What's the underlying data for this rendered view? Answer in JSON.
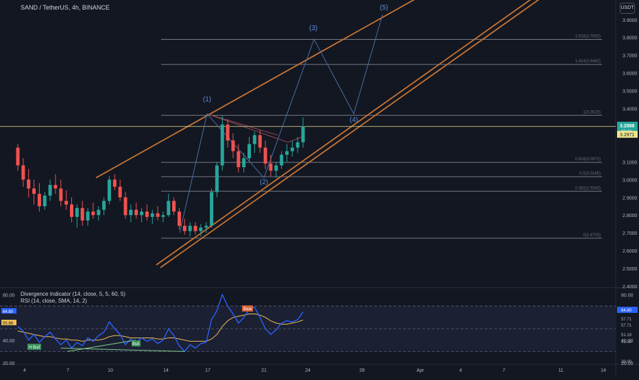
{
  "header": {
    "symbol_line": "SAND / TetherUS, 4h, BINANCE",
    "currency_badge": "USDT"
  },
  "indicator_legend": {
    "line1": "Divergence Indicator (14, close, 5, 5, 60, 5)",
    "line2": "RSI (14, close, SMA, 14, 2)"
  },
  "price_axis": {
    "ticks": [
      "3.9000",
      "3.8000",
      "3.7000",
      "3.6000",
      "3.5000",
      "3.4000",
      "3.3000",
      "3.1000",
      "3.0000",
      "2.9000",
      "2.8000",
      "2.7000",
      "2.6000",
      "2.5000",
      "2.4000"
    ],
    "current_price": "3.2988",
    "countdown": "00:48",
    "price_label_2": "3.2971"
  },
  "rsi_axis": {
    "ticks": [
      "80.00",
      "40.00",
      "20.00"
    ],
    "right_labels": [
      "64.80",
      "57.71",
      "57.71",
      "51.19",
      "51.19",
      "20.00"
    ],
    "left_labels": [
      "64.80",
      "55.88"
    ]
  },
  "time_axis": {
    "ticks": [
      "4",
      "7",
      "10",
      "14",
      "17",
      "21",
      "24",
      "28",
      "Apr",
      "4",
      "7",
      "11",
      "14"
    ]
  },
  "fib_levels": [
    {
      "label": "1.618(3.7893)",
      "value": 3.7893
    },
    {
      "label": "1.414(3.6482)",
      "value": 3.6482
    },
    {
      "label": "1(3.3619)",
      "value": 3.3619
    },
    {
      "label": "0.618(3.0972)",
      "value": 3.0972
    },
    {
      "label": "0.5(3.0165)",
      "value": 3.0165
    },
    {
      "label": "0.382(2.9345)",
      "value": 2.9345
    },
    {
      "label": "0(2.6703)",
      "value": 2.6703
    }
  ],
  "wave_labels": [
    "(1)",
    "(2)",
    "(3)",
    "(4)",
    "(5)"
  ],
  "rsi_markers": {
    "bull": "H Bull",
    "bull2": "Bull",
    "bear": "Bear"
  },
  "colors": {
    "background": "#131722",
    "up": "#26a69a",
    "down": "#ef5350",
    "channel": "#c87533",
    "fib": "#787b86",
    "wave": "#4a6fa5",
    "rsi": "#2962ff",
    "rsi_ma": "#f0c05a",
    "current_price_line": "#f0e68c"
  },
  "chart_data": {
    "type": "candlestick",
    "ylim": [
      2.4,
      3.98
    ],
    "rsi_ylim": [
      20,
      85
    ],
    "candles": [
      [
        3.18,
        3.2,
        3.05,
        3.08
      ],
      [
        3.08,
        3.12,
        2.96,
        3.0
      ],
      [
        3.0,
        3.06,
        2.9,
        2.95
      ],
      [
        2.95,
        3.0,
        2.86,
        2.92
      ],
      [
        2.92,
        2.98,
        2.82,
        2.85
      ],
      [
        2.85,
        2.93,
        2.83,
        2.91
      ],
      [
        2.91,
        3.0,
        2.88,
        2.97
      ],
      [
        2.97,
        3.03,
        2.92,
        2.95
      ],
      [
        2.95,
        3.0,
        2.85,
        2.88
      ],
      [
        2.88,
        2.94,
        2.83,
        2.86
      ],
      [
        2.86,
        2.9,
        2.76,
        2.79
      ],
      [
        2.79,
        2.86,
        2.73,
        2.84
      ],
      [
        2.84,
        2.88,
        2.74,
        2.77
      ],
      [
        2.77,
        2.84,
        2.74,
        2.82
      ],
      [
        2.82,
        2.87,
        2.78,
        2.8
      ],
      [
        2.8,
        2.85,
        2.77,
        2.83
      ],
      [
        2.83,
        2.9,
        2.8,
        2.88
      ],
      [
        2.88,
        3.02,
        2.86,
        3.0
      ],
      [
        3.0,
        3.03,
        2.94,
        2.96
      ],
      [
        2.96,
        3.0,
        2.88,
        2.9
      ],
      [
        2.9,
        2.93,
        2.78,
        2.8
      ],
      [
        2.8,
        2.86,
        2.76,
        2.83
      ],
      [
        2.83,
        2.87,
        2.78,
        2.8
      ],
      [
        2.8,
        2.84,
        2.76,
        2.82
      ],
      [
        2.82,
        2.86,
        2.77,
        2.79
      ],
      [
        2.79,
        2.83,
        2.75,
        2.81
      ],
      [
        2.81,
        2.85,
        2.77,
        2.79
      ],
      [
        2.79,
        2.82,
        2.76,
        2.8
      ],
      [
        2.8,
        2.92,
        2.79,
        2.88
      ],
      [
        2.88,
        2.9,
        2.8,
        2.82
      ],
      [
        2.82,
        2.84,
        2.72,
        2.74
      ],
      [
        2.74,
        2.78,
        2.69,
        2.71
      ],
      [
        2.71,
        2.76,
        2.68,
        2.74
      ],
      [
        2.74,
        2.76,
        2.69,
        2.71
      ],
      [
        2.71,
        2.75,
        2.68,
        2.73
      ],
      [
        2.73,
        2.76,
        2.7,
        2.74
      ],
      [
        2.74,
        2.95,
        2.73,
        2.93
      ],
      [
        2.93,
        3.1,
        2.9,
        3.08
      ],
      [
        3.08,
        3.36,
        3.05,
        3.31
      ],
      [
        3.31,
        3.34,
        3.18,
        3.22
      ],
      [
        3.22,
        3.26,
        3.12,
        3.16
      ],
      [
        3.16,
        3.2,
        3.04,
        3.07
      ],
      [
        3.07,
        3.15,
        3.04,
        3.12
      ],
      [
        3.12,
        3.24,
        3.1,
        3.2
      ],
      [
        3.2,
        3.27,
        3.15,
        3.25
      ],
      [
        3.25,
        3.28,
        3.15,
        3.18
      ],
      [
        3.18,
        3.22,
        3.06,
        3.09
      ],
      [
        3.09,
        3.14,
        3.02,
        3.05
      ],
      [
        3.05,
        3.1,
        3.01,
        3.08
      ],
      [
        3.08,
        3.16,
        3.06,
        3.14
      ],
      [
        3.14,
        3.2,
        3.1,
        3.16
      ],
      [
        3.16,
        3.22,
        3.13,
        3.18
      ],
      [
        3.18,
        3.24,
        3.15,
        3.21
      ],
      [
        3.21,
        3.35,
        3.18,
        3.3
      ]
    ],
    "rsi": [
      52,
      48,
      40,
      45,
      38,
      43,
      47,
      41,
      36,
      40,
      33,
      38,
      35,
      42,
      39,
      44,
      47,
      56,
      50,
      45,
      36,
      41,
      38,
      42,
      39,
      41,
      37,
      40,
      50,
      44,
      35,
      30,
      36,
      33,
      37,
      38,
      58,
      66,
      80,
      70,
      63,
      55,
      60,
      67,
      69,
      60,
      50,
      45,
      49,
      55,
      57,
      56,
      58,
      64.8
    ],
    "rsi_ma": [
      48,
      47,
      46,
      45,
      44,
      43,
      43,
      42,
      41,
      41,
      40,
      40,
      39,
      40,
      40,
      40,
      41,
      43,
      44,
      44,
      43,
      42,
      42,
      42,
      42,
      42,
      41,
      41,
      42,
      42,
      41,
      40,
      39,
      39,
      39,
      39,
      41,
      45,
      52,
      57,
      60,
      61,
      62,
      63,
      63,
      62,
      60,
      57,
      55,
      54,
      54,
      55,
      56,
      57.7
    ]
  }
}
